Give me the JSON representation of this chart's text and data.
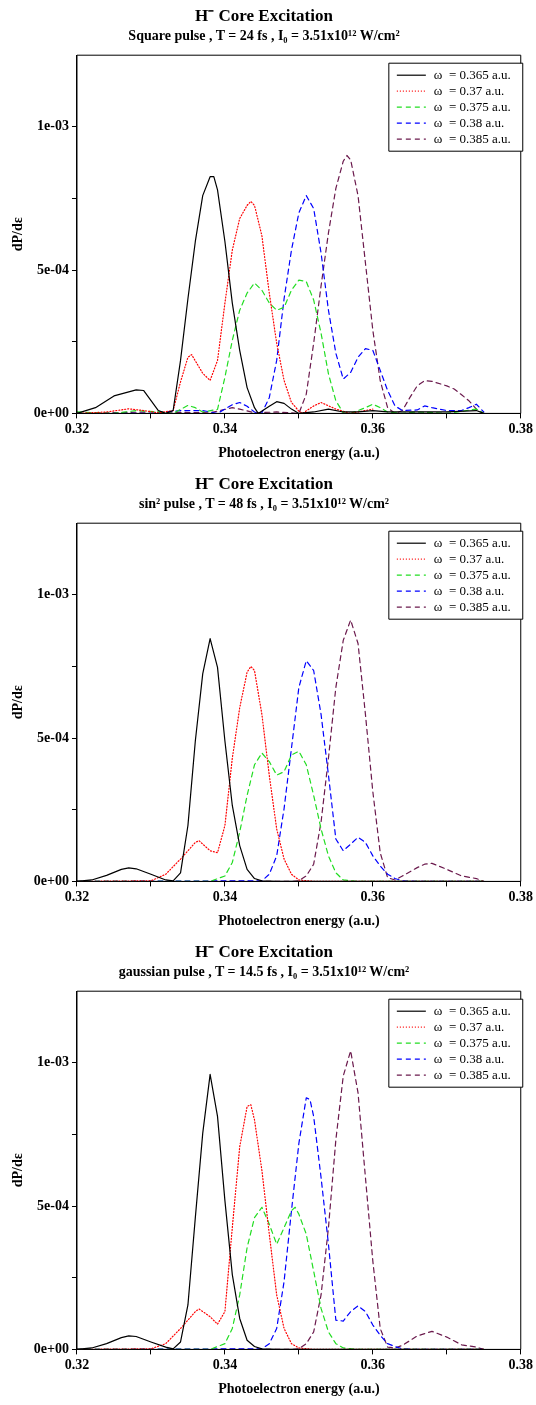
{
  "chart_data": [
    {
      "type": "line",
      "title": "H⁻ Core Excitation",
      "subtitle": "Square pulse , T = 24 fs , I₀ = 3.51x10¹² W/cm²",
      "xlabel": "Photoelectron energy (a.u.)",
      "ylabel": "dP/dε",
      "legend": "top right",
      "xlim": [
        0.32,
        0.38
      ],
      "xticks": [
        0.32,
        {
          "value": 0.33,
          "label": null
        },
        0.34,
        {
          "value": 0.35,
          "label": null
        },
        0.36,
        {
          "value": 0.37,
          "label": null
        },
        0.38
      ],
      "ylim": [
        0,
        0.00125
      ],
      "yticks": [
        {
          "value": 0,
          "label": "0e+00"
        },
        {
          "value": 0.00025,
          "label": null
        },
        {
          "value": 0.0005,
          "label": "5e-04"
        },
        {
          "value": 0.00075,
          "label": null
        },
        {
          "value": 0.001,
          "label": "1e-03"
        }
      ],
      "series": [
        {
          "name": "ω  = 0.365 a.u.",
          "color": "#000000",
          "line_style": "solid",
          "x": [
            0.32,
            0.3225,
            0.325,
            0.328,
            0.329,
            0.331,
            0.332,
            0.333,
            0.334,
            0.335,
            0.336,
            0.337,
            0.338,
            0.3385,
            0.339,
            0.34,
            0.341,
            0.342,
            0.343,
            0.344,
            0.3445,
            0.346,
            0.347,
            0.348,
            0.349,
            0.35,
            0.352,
            0.354,
            0.356,
            0.358,
            0.36,
            0.362,
            0.365,
            0.37,
            0.374,
            0.375
          ],
          "values": [
            0,
            2e-05,
            6.1e-05,
            8.2e-05,
            8e-05,
            1e-05,
            0,
            1e-05,
            0.000185,
            0.0004,
            0.0006,
            0.00076,
            0.000826,
            0.000826,
            0.00078,
            0.0006,
            0.000385,
            0.00022,
            9e-05,
            2e-05,
            0,
            2.5e-05,
            4.1e-05,
            3.5e-05,
            1.5e-05,
            0,
            5e-06,
            1.5e-05,
            5e-06,
            5e-06,
            1e-05,
            5e-06,
            5e-06,
            5e-06,
            1e-05,
            0
          ]
        },
        {
          "name": "ω  = 0.37 a.u.",
          "color": "#ff0000",
          "line_style": "dotted",
          "x": [
            0.32,
            0.324,
            0.327,
            0.329,
            0.331,
            0.333,
            0.334,
            0.335,
            0.3355,
            0.337,
            0.338,
            0.339,
            0.34,
            0.341,
            0.342,
            0.343,
            0.3435,
            0.344,
            0.345,
            0.346,
            0.347,
            0.348,
            0.349,
            0.35,
            0.3505,
            0.352,
            0.353,
            0.355,
            0.357,
            0.359,
            0.36
          ],
          "values": [
            0,
            5e-06,
            1.6e-05,
            1e-05,
            2e-06,
            1e-05,
            0.00011,
            0.000196,
            0.000205,
            0.00014,
            0.000115,
            0.000185,
            0.000385,
            0.00057,
            0.00068,
            0.000726,
            0.00074,
            0.000726,
            0.00062,
            0.00042,
            0.000245,
            0.000115,
            3.8e-05,
            8e-06,
            0,
            2.6e-05,
            3.8e-05,
            1.5e-05,
            0,
            1e-05,
            1.5e-05
          ]
        },
        {
          "name": "ω  = 0.375 a.u.",
          "color": "#22dd22",
          "line_style": "dashed",
          "x": [
            0.32,
            0.325,
            0.328,
            0.331,
            0.333,
            0.335,
            0.336,
            0.337,
            0.339,
            0.34,
            0.341,
            0.342,
            0.343,
            0.344,
            0.345,
            0.346,
            0.347,
            0.348,
            0.349,
            0.35,
            0.351,
            0.352,
            0.353,
            0.354,
            0.355,
            0.356,
            0.357,
            0.359,
            0.36,
            0.361,
            0.362,
            0.364,
            0.366,
            0.37,
            0.374,
            0.375
          ],
          "values": [
            5e-06,
            0,
            1e-05,
            5e-06,
            0,
            2.8e-05,
            2e-05,
            5e-06,
            1.4e-05,
            0.000126,
            0.000255,
            0.00036,
            0.00042,
            0.000455,
            0.00043,
            0.000385,
            0.00036,
            0.00037,
            0.00043,
            0.000465,
            0.00046,
            0.000396,
            0.00028,
            0.000138,
            4.4e-05,
            2e-06,
            0,
            2e-05,
            3.2e-05,
            2e-05,
            5e-06,
            0,
            5e-06,
            0,
            1.5e-05,
            0
          ]
        },
        {
          "name": "ω  = 0.38 a.u.",
          "color": "#0000ff",
          "line_style": "dashed",
          "x": [
            0.32,
            0.33,
            0.334,
            0.337,
            0.339,
            0.341,
            0.342,
            0.343,
            0.344,
            0.3445,
            0.345,
            0.346,
            0.347,
            0.348,
            0.349,
            0.35,
            0.351,
            0.352,
            0.353,
            0.354,
            0.355,
            0.356,
            0.357,
            0.358,
            0.359,
            0.36,
            0.361,
            0.362,
            0.363,
            0.364,
            0.366,
            0.367,
            0.368,
            0.37,
            0.372,
            0.373,
            0.374,
            0.375
          ],
          "values": [
            0,
            0,
            1e-05,
            1e-05,
            0,
            3e-05,
            3.8e-05,
            2.5e-05,
            5e-06,
            0,
            2e-06,
            5.5e-05,
            0.000185,
            0.0004,
            0.00057,
            0.0007,
            0.00076,
            0.000715,
            0.00056,
            0.00036,
            0.00021,
            0.00012,
            0.000143,
            0.000196,
            0.000226,
            0.00022,
            0.00015,
            8e-05,
            2.6e-05,
            1e-05,
            1.2e-05,
            2.6e-05,
            2e-05,
            1e-05,
            1e-05,
            2e-05,
            3.2e-05,
            5e-06
          ]
        },
        {
          "name": "ω  = 0.385 a.u.",
          "color": "#6b1a4d",
          "line_style": "dashed",
          "x": [
            0.32,
            0.33,
            0.338,
            0.341,
            0.342,
            0.344,
            0.347,
            0.35,
            0.351,
            0.352,
            0.353,
            0.354,
            0.355,
            0.356,
            0.3565,
            0.357,
            0.358,
            0.359,
            0.36,
            0.361,
            0.362,
            0.363,
            0.364,
            0.365,
            0.366,
            0.367,
            0.368,
            0.37,
            0.371,
            0.372,
            0.373,
            0.374,
            0.375
          ],
          "values": [
            0,
            5e-06,
            2e-06,
            2e-05,
            1.5e-05,
            2e-06,
            5e-06,
            0,
            6.7e-05,
            0.000245,
            0.000445,
            0.00063,
            0.000785,
            0.00088,
            0.0009,
            0.000885,
            0.00076,
            0.000525,
            0.00029,
            0.000114,
            2e-05,
            0,
            1e-05,
            5.5e-05,
            9.6e-05,
            0.000114,
            0.000112,
            9.6e-05,
            8.5e-05,
            6.5e-05,
            4.4e-05,
            1.5e-05,
            0
          ]
        }
      ]
    },
    {
      "type": "line",
      "title": "H⁻ Core Excitation",
      "subtitle": "sin² pulse , T = 48 fs , I₀ = 3.51x10¹² W/cm²",
      "xlabel": "Photoelectron energy (a.u.)",
      "ylabel": "dP/dε",
      "legend": "top right",
      "xlim": [
        0.32,
        0.38
      ],
      "xticks": [
        0.32,
        {
          "value": 0.33,
          "label": null
        },
        0.34,
        {
          "value": 0.35,
          "label": null
        },
        0.36,
        {
          "value": 0.37,
          "label": null
        },
        0.38
      ],
      "ylim": [
        0,
        0.00125
      ],
      "yticks": [
        {
          "value": 0,
          "label": "0e+00"
        },
        {
          "value": 0.00025,
          "label": null
        },
        {
          "value": 0.0005,
          "label": "5e-04"
        },
        {
          "value": 0.00075,
          "label": null
        },
        {
          "value": 0.001,
          "label": "1e-03"
        }
      ],
      "series": [
        {
          "name": "ω  = 0.365 a.u.",
          "color": "#000000",
          "line_style": "solid",
          "x": [
            0.32,
            0.322,
            0.324,
            0.326,
            0.327,
            0.328,
            0.33,
            0.332,
            0.333,
            0.334,
            0.335,
            0.336,
            0.337,
            0.338,
            0.339,
            0.34,
            0.341,
            0.342,
            0.343,
            0.344,
            0.345,
            0.347,
            0.375
          ],
          "values": [
            0,
            5e-06,
            2.1e-05,
            4.2e-05,
            4.7e-05,
            4.4e-05,
            2.5e-05,
            5e-06,
            2e-06,
            3e-05,
            0.000195,
            0.00049,
            0.000724,
            0.000847,
            0.000747,
            0.00049,
            0.000265,
            0.000125,
            4.2e-05,
            1e-05,
            2e-06,
            0,
            0
          ]
        },
        {
          "name": "ω  = 0.37 a.u.",
          "color": "#ff0000",
          "line_style": "dotted",
          "x": [
            0.32,
            0.33,
            0.332,
            0.334,
            0.336,
            0.3365,
            0.338,
            0.339,
            0.34,
            0.341,
            0.342,
            0.343,
            0.3435,
            0.344,
            0.345,
            0.346,
            0.347,
            0.348,
            0.349,
            0.35,
            0.352,
            0.375
          ],
          "values": [
            0,
            2e-06,
            2.5e-05,
            7.8e-05,
            0.000136,
            0.000142,
            0.000107,
            0.0001,
            0.000195,
            0.00043,
            0.000606,
            0.00073,
            0.00075,
            0.000736,
            0.000583,
            0.00037,
            0.000183,
            7.8e-05,
            2.5e-05,
            5e-06,
            0,
            0
          ]
        },
        {
          "name": "ω  = 0.375 a.u.",
          "color": "#22dd22",
          "line_style": "dashed",
          "x": [
            0.32,
            0.338,
            0.34,
            0.341,
            0.342,
            0.343,
            0.344,
            0.345,
            0.346,
            0.347,
            0.348,
            0.349,
            0.35,
            0.351,
            0.352,
            0.353,
            0.354,
            0.355,
            0.356,
            0.358,
            0.375
          ],
          "values": [
            0,
            0,
            1.9e-05,
            6.6e-05,
            0.000172,
            0.0003,
            0.000407,
            0.000448,
            0.000418,
            0.000371,
            0.000383,
            0.000441,
            0.000454,
            0.000407,
            0.0003,
            0.000183,
            8.9e-05,
            3e-05,
            5e-06,
            0,
            0
          ]
        },
        {
          "name": "ω  = 0.38 a.u.",
          "color": "#0000ff",
          "line_style": "dashed",
          "x": [
            0.32,
            0.345,
            0.346,
            0.347,
            0.348,
            0.349,
            0.35,
            0.351,
            0.352,
            0.353,
            0.354,
            0.355,
            0.356,
            0.357,
            0.358,
            0.359,
            0.36,
            0.361,
            0.362,
            0.363,
            0.364,
            0.366,
            0.375
          ],
          "values": [
            0,
            2e-06,
            2.5e-05,
            8.9e-05,
            0.000254,
            0.000465,
            0.000677,
            0.00077,
            0.000736,
            0.000583,
            0.000371,
            0.000148,
            0.000107,
            0.00013,
            0.000154,
            0.000136,
            8.9e-05,
            5.4e-05,
            2.5e-05,
            1e-05,
            2e-06,
            0,
            0
          ]
        },
        {
          "name": "ω  = 0.385 a.u.",
          "color": "#6b1a4d",
          "line_style": "dashed",
          "x": [
            0.32,
            0.349,
            0.35,
            0.351,
            0.352,
            0.353,
            0.354,
            0.355,
            0.356,
            0.357,
            0.358,
            0.359,
            0.36,
            0.361,
            0.362,
            0.363,
            0.364,
            0.366,
            0.367,
            0.368,
            0.37,
            0.372,
            0.374,
            0.375
          ],
          "values": [
            0,
            0,
            2e-06,
            1.9e-05,
            6e-05,
            0.000207,
            0.00043,
            0.000677,
            0.000841,
            0.000912,
            0.00083,
            0.000583,
            0.000313,
            0.0001,
            1.3e-05,
            5e-06,
            1.9e-05,
            4.8e-05,
            6e-05,
            6.3e-05,
            4.2e-05,
            1.9e-05,
            1e-05,
            0
          ]
        }
      ]
    },
    {
      "type": "line",
      "title": "H⁻ Core Excitation",
      "subtitle": "gaussian pulse , T = 14.5 fs , I₀ = 3.51x10¹² W/cm²",
      "xlabel": "Photoelectron energy (a.u.)",
      "ylabel": "dP/dε",
      "legend": "top right",
      "xlim": [
        0.32,
        0.38
      ],
      "xticks": [
        0.32,
        {
          "value": 0.33,
          "label": null
        },
        0.34,
        {
          "value": 0.35,
          "label": null
        },
        0.36,
        {
          "value": 0.37,
          "label": null
        },
        0.38
      ],
      "ylim": [
        0,
        0.00125
      ],
      "yticks": [
        {
          "value": 0,
          "label": "0e+00"
        },
        {
          "value": 0.00025,
          "label": null
        },
        {
          "value": 0.0005,
          "label": "5e-04"
        },
        {
          "value": 0.00075,
          "label": null
        },
        {
          "value": 0.001,
          "label": "1e-03"
        }
      ],
      "series": [
        {
          "name": "ω  = 0.365 a.u.",
          "color": "#000000",
          "line_style": "solid",
          "x": [
            0.32,
            0.322,
            0.324,
            0.326,
            0.327,
            0.328,
            0.33,
            0.332,
            0.333,
            0.334,
            0.335,
            0.336,
            0.337,
            0.338,
            0.339,
            0.34,
            0.341,
            0.342,
            0.343,
            0.344,
            0.345,
            0.347,
            0.375
          ],
          "values": [
            0,
            5e-06,
            2e-05,
            4.1e-05,
            4.7e-05,
            4.5e-05,
            2.6e-05,
            8e-06,
            2e-06,
            2.6e-05,
            0.000155,
            0.00046,
            0.000754,
            0.00096,
            0.000813,
            0.000519,
            0.000261,
            0.000108,
            3.2e-05,
            1e-05,
            2e-06,
            0,
            0
          ]
        },
        {
          "name": "ω  = 0.37 a.u.",
          "color": "#ff0000",
          "line_style": "dotted",
          "x": [
            0.32,
            0.33,
            0.332,
            0.334,
            0.336,
            0.3365,
            0.338,
            0.339,
            0.34,
            0.341,
            0.342,
            0.343,
            0.3435,
            0.344,
            0.345,
            0.346,
            0.347,
            0.348,
            0.349,
            0.35,
            0.352,
            0.375
          ],
          "values": [
            0,
            2e-06,
            2e-05,
            7.3e-05,
            0.000132,
            0.000141,
            0.000114,
            8.8e-05,
            0.000132,
            0.000425,
            0.000707,
            0.000848,
            0.000854,
            0.000801,
            0.000625,
            0.000402,
            0.00019,
            7.3e-05,
            2e-05,
            5e-06,
            0,
            0
          ]
        },
        {
          "name": "ω  = 0.375 a.u.",
          "color": "#22dd22",
          "line_style": "dashed",
          "x": [
            0.32,
            0.338,
            0.34,
            0.341,
            0.342,
            0.343,
            0.344,
            0.345,
            0.346,
            0.347,
            0.348,
            0.349,
            0.3495,
            0.35,
            0.351,
            0.352,
            0.353,
            0.354,
            0.355,
            0.356,
            0.358,
            0.375
          ],
          "values": [
            0,
            0,
            2e-05,
            7.3e-05,
            0.00019,
            0.000355,
            0.00046,
            0.000496,
            0.000437,
            0.000367,
            0.000425,
            0.000484,
            0.000496,
            0.000472,
            0.000402,
            0.000273,
            0.000143,
            6.1e-05,
            2e-05,
            5e-06,
            0,
            0
          ]
        },
        {
          "name": "ω  = 0.38 a.u.",
          "color": "#0000ff",
          "line_style": "dashed",
          "x": [
            0.32,
            0.345,
            0.346,
            0.347,
            0.348,
            0.349,
            0.35,
            0.351,
            0.3515,
            0.352,
            0.353,
            0.354,
            0.355,
            0.356,
            0.357,
            0.358,
            0.359,
            0.36,
            0.361,
            0.362,
            0.363,
            0.364,
            0.366,
            0.375
          ],
          "values": [
            0,
            2e-06,
            2e-05,
            7.3e-05,
            0.000237,
            0.000484,
            0.000719,
            0.000878,
            0.000872,
            0.000813,
            0.0006,
            0.000367,
            0.000102,
            9.9e-05,
            0.000132,
            0.000152,
            0.000132,
            8.5e-05,
            4.9e-05,
            2e-05,
            1e-05,
            2e-06,
            0,
            0
          ]
        },
        {
          "name": "ω  = 0.385 a.u.",
          "color": "#6b1a4d",
          "line_style": "dashed",
          "x": [
            0.32,
            0.349,
            0.35,
            0.351,
            0.352,
            0.353,
            0.354,
            0.355,
            0.356,
            0.357,
            0.358,
            0.359,
            0.36,
            0.361,
            0.362,
            0.363,
            0.364,
            0.366,
            0.367,
            0.368,
            0.37,
            0.372,
            0.374,
            0.375
          ],
          "values": [
            0,
            0,
            2e-06,
            2e-05,
            6.1e-05,
            0.00019,
            0.000425,
            0.000731,
            0.000954,
            0.001042,
            0.000895,
            0.0006,
            0.000308,
            7.3e-05,
            8e-06,
            5e-06,
            1.4e-05,
            4.7e-05,
            5.5e-05,
            6.3e-05,
            4.3e-05,
            1.6e-05,
            8e-06,
            0
          ]
        }
      ]
    }
  ]
}
